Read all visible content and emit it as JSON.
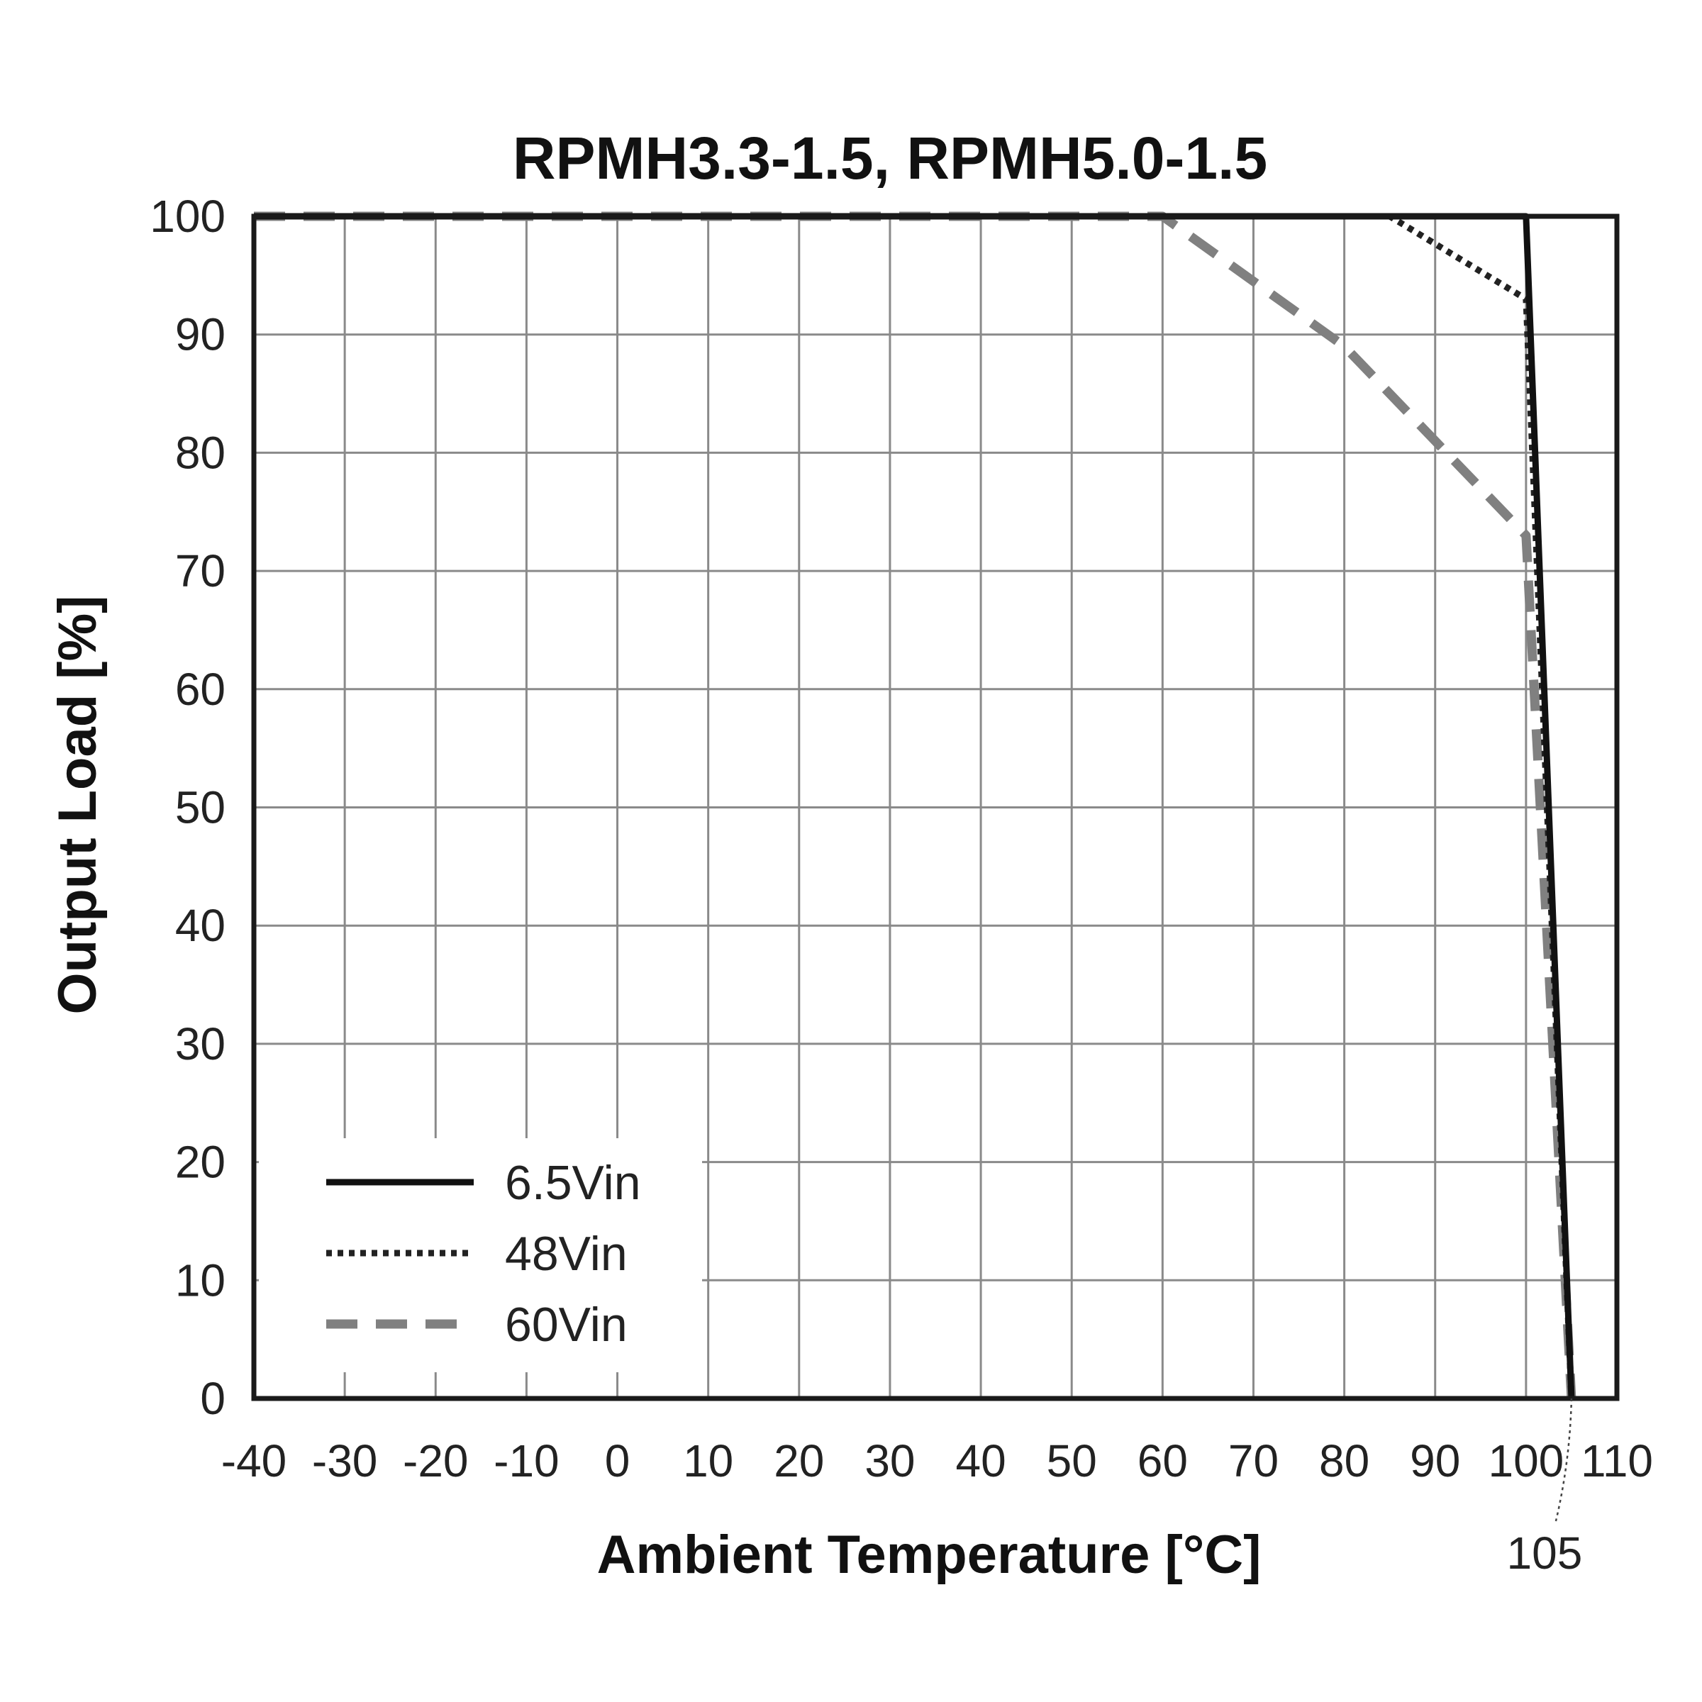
{
  "chart_data": {
    "type": "line",
    "title": "RPMH3.3-1.5, RPMH5.0-1.5",
    "xlabel": "Ambient Temperature [°C]",
    "ylabel": "Output Load [%]",
    "xlim": [
      -40,
      110
    ],
    "ylim": [
      0,
      100
    ],
    "x_ticks": [
      -40,
      -30,
      -20,
      -10,
      0,
      10,
      20,
      30,
      40,
      50,
      60,
      70,
      80,
      90,
      100,
      110
    ],
    "y_ticks": [
      0,
      10,
      20,
      30,
      40,
      50,
      60,
      70,
      80,
      90,
      100
    ],
    "grid": true,
    "legend_position": "bottom-left",
    "series": [
      {
        "name": "6.5Vin",
        "style": "solid",
        "color": "#111111",
        "points": [
          [
            -40,
            100
          ],
          [
            100,
            100
          ],
          [
            105,
            0
          ]
        ]
      },
      {
        "name": "48Vin",
        "style": "dotted",
        "color": "#222222",
        "points": [
          [
            -40,
            100
          ],
          [
            85,
            100
          ],
          [
            100,
            93
          ],
          [
            105,
            0
          ]
        ]
      },
      {
        "name": "60Vin",
        "style": "dashed",
        "color": "#808080",
        "points": [
          [
            -40,
            100
          ],
          [
            60,
            100
          ],
          [
            80,
            89
          ],
          [
            90,
            81
          ],
          [
            100,
            73
          ],
          [
            105,
            0
          ]
        ]
      }
    ],
    "annotations": [
      {
        "text": "105",
        "x": 105,
        "y": 0
      }
    ]
  }
}
